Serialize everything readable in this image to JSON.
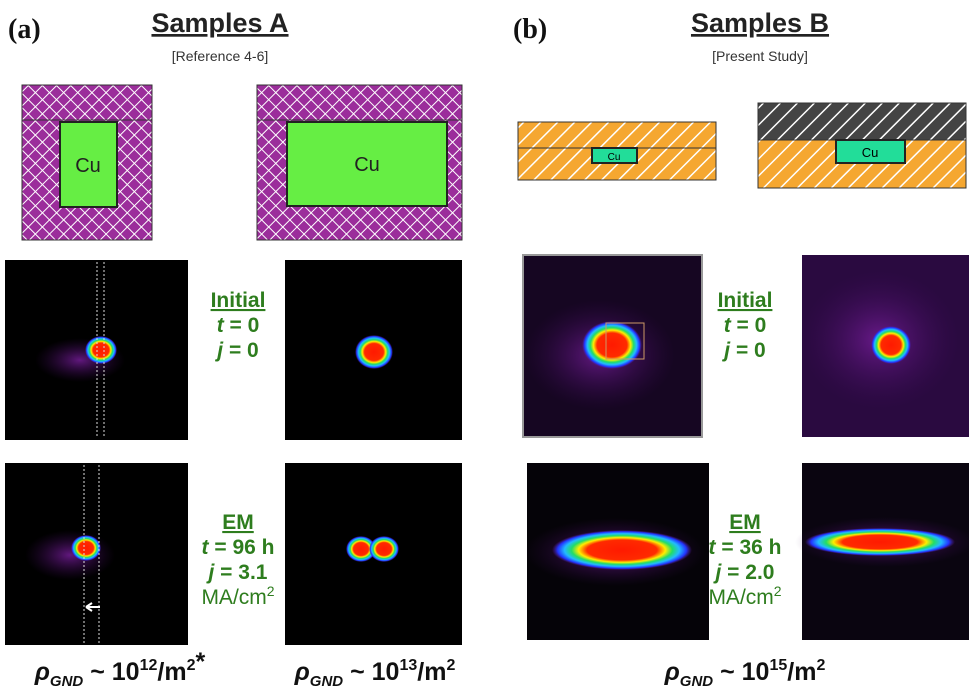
{
  "panels": [
    {
      "label": "(a)",
      "title": "Samples A",
      "subtitle": "[Reference 4-6]",
      "schematics": [
        "Cu",
        "Cu"
      ],
      "initial": {
        "heading": "Initial",
        "lines": [
          {
            "var": "t",
            "rest": " = 0"
          },
          {
            "var": "j",
            "rest": " = 0"
          }
        ]
      },
      "em": {
        "heading": "EM",
        "lines": [
          {
            "var": "t",
            "rest": " = 96 h"
          },
          {
            "var": "j",
            "rest": " = 3.1"
          }
        ],
        "unit": {
          "base": "MA/cm",
          "exp": "2"
        }
      },
      "densities": [
        {
          "symbol": "ρ",
          "sub": "GND",
          "middle": " ~ 10",
          "exp": "12",
          "unit": "/m",
          "unit_exp": "2",
          "suffix": "*"
        },
        {
          "symbol": "ρ",
          "sub": "GND",
          "middle": " ~ 10",
          "exp": "13",
          "unit": "/m",
          "unit_exp": "2"
        }
      ]
    },
    {
      "label": "(b)",
      "title": "Samples B",
      "subtitle": "[Present Study]",
      "schematics": [
        "Cu",
        "Cu"
      ],
      "initial": {
        "heading": "Initial",
        "lines": [
          {
            "var": "t",
            "rest": " = 0"
          },
          {
            "var": "j",
            "rest": " = 0"
          }
        ]
      },
      "em": {
        "heading": "EM",
        "lines": [
          {
            "var": "t",
            "rest": " = 36 h"
          },
          {
            "var": "j",
            "rest": " = 2.0"
          }
        ],
        "unit": {
          "base": "MA/cm",
          "exp": "2"
        }
      },
      "densities": [
        {
          "symbol": "ρ",
          "sub": "GND",
          "middle": " ~ 10",
          "exp": "15",
          "unit": "/m",
          "unit_exp": "2"
        }
      ]
    }
  ]
}
